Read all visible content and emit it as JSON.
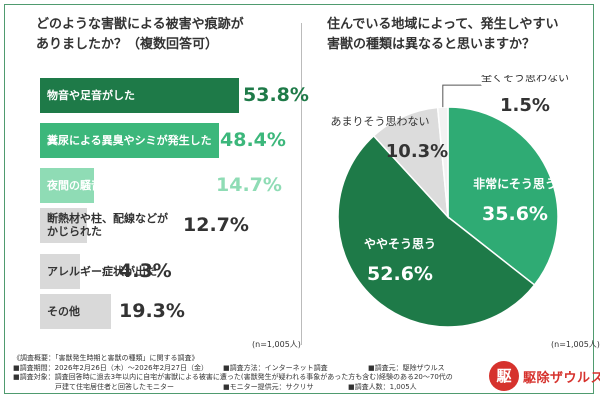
{
  "left_question": [
    "どのような害獣による被害や痕跡が",
    "ありましたか？（複数回答可）"
  ],
  "right_question": [
    "住んでいる地域によって、発生しやすい",
    "害獣の種類は異なると思いますか？"
  ],
  "left_n": "(n=1,005人)",
  "right_n": "(n=1,005人)",
  "colors": {
    "dark_green": "#1e7a48",
    "mid_green": "#3cb77b",
    "light_green": "#8fdcb5",
    "gray": "#d9d9d9",
    "value_gray": "#333333"
  },
  "chart_data": [
    {
      "type": "bar",
      "orientation": "horizontal",
      "categories": [
        "物音や足音がした",
        "糞尿による異臭やシミが発生した",
        "夜間の騒音による睡眠不足・不眠",
        "断熱材や柱、配線などがかじられた",
        "アレルギー症状が出た",
        "その他"
      ],
      "category_lines": [
        [
          "物音や足音がした"
        ],
        [
          "糞尿による異臭やシミが発生した"
        ],
        [
          "夜間の騒音による睡眠不足・不眠"
        ],
        [
          "断熱材や柱、配線などが",
          "かじられた"
        ],
        [
          "アレルギー症状が出た"
        ],
        [
          "その他"
        ]
      ],
      "values": [
        53.8,
        48.4,
        14.7,
        12.7,
        4.3,
        19.3
      ],
      "value_labels": [
        "53.8%",
        "48.4%",
        "14.7%",
        "12.7%",
        "4.3%",
        "19.3%"
      ],
      "xlim": [
        0,
        100
      ]
    },
    {
      "type": "pie",
      "labels": [
        "非常にそう思う",
        "ややそう思う",
        "あまりそう思わない",
        "全くそう思わない"
      ],
      "values": [
        35.6,
        52.6,
        10.3,
        1.5
      ],
      "value_labels": [
        "35.6%",
        "52.6%",
        "10.3%",
        "1.5%"
      ],
      "colors": [
        "#2fab74",
        "#1e7a48",
        "#dcdcdc",
        "#f2f2f2"
      ]
    }
  ],
  "footer": {
    "title": "《調査概要：「害獣発生時期と害獣の種類」に関する調査》",
    "period": "■調査期間：2026年2月26日（木）〜2026年2月27日（金）",
    "method": "■調査方法：インターネット調査",
    "source": "■調査元：駆除ザウルス",
    "target1": "■調査対象：調査回答時に過去3年以内に自宅が害獣による被害に遭った(害獣発生が疑われる事象があった方も含む)経験のある20〜70代の",
    "target2": "戸建て住宅居住者と回答したモニター",
    "provider": "■モニター提供元：サクリサ",
    "count": "■調査人数：1,005人"
  },
  "logo": {
    "name": "駆除ザウルス",
    "mark": "駆"
  }
}
